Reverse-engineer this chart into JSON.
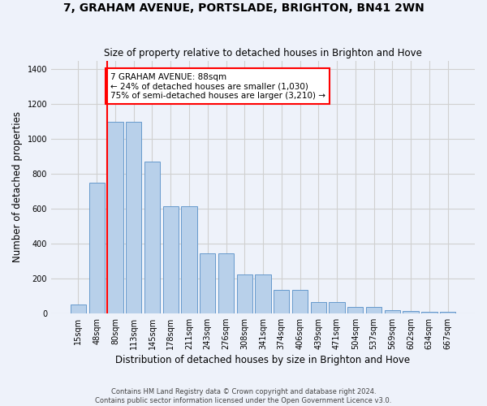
{
  "title": "7, GRAHAM AVENUE, PORTSLADE, BRIGHTON, BN41 2WN",
  "subtitle": "Size of property relative to detached houses in Brighton and Hove",
  "xlabel": "Distribution of detached houses by size in Brighton and Hove",
  "ylabel": "Number of detached properties",
  "footnote1": "Contains HM Land Registry data © Crown copyright and database right 2024.",
  "footnote2": "Contains public sector information licensed under the Open Government Licence v3.0.",
  "categories": [
    "15sqm",
    "48sqm",
    "80sqm",
    "113sqm",
    "145sqm",
    "178sqm",
    "211sqm",
    "243sqm",
    "276sqm",
    "308sqm",
    "341sqm",
    "374sqm",
    "406sqm",
    "439sqm",
    "471sqm",
    "504sqm",
    "537sqm",
    "569sqm",
    "602sqm",
    "634sqm",
    "667sqm"
  ],
  "values": [
    50,
    750,
    1100,
    1100,
    870,
    615,
    615,
    345,
    345,
    225,
    225,
    135,
    135,
    65,
    65,
    35,
    35,
    20,
    15,
    10,
    10
  ],
  "bar_color": "#b8d0ea",
  "bar_edge_color": "#6699cc",
  "background_color": "#eef2fa",
  "grid_color": "#d0d0d0",
  "red_line_index": 2,
  "annotation_text": "7 GRAHAM AVENUE: 88sqm\n← 24% of detached houses are smaller (1,030)\n75% of semi-detached houses are larger (3,210) →",
  "annotation_box_color": "white",
  "annotation_box_edge_color": "red",
  "ylim": [
    0,
    1450
  ],
  "yticks": [
    0,
    200,
    400,
    600,
    800,
    1000,
    1200,
    1400
  ]
}
